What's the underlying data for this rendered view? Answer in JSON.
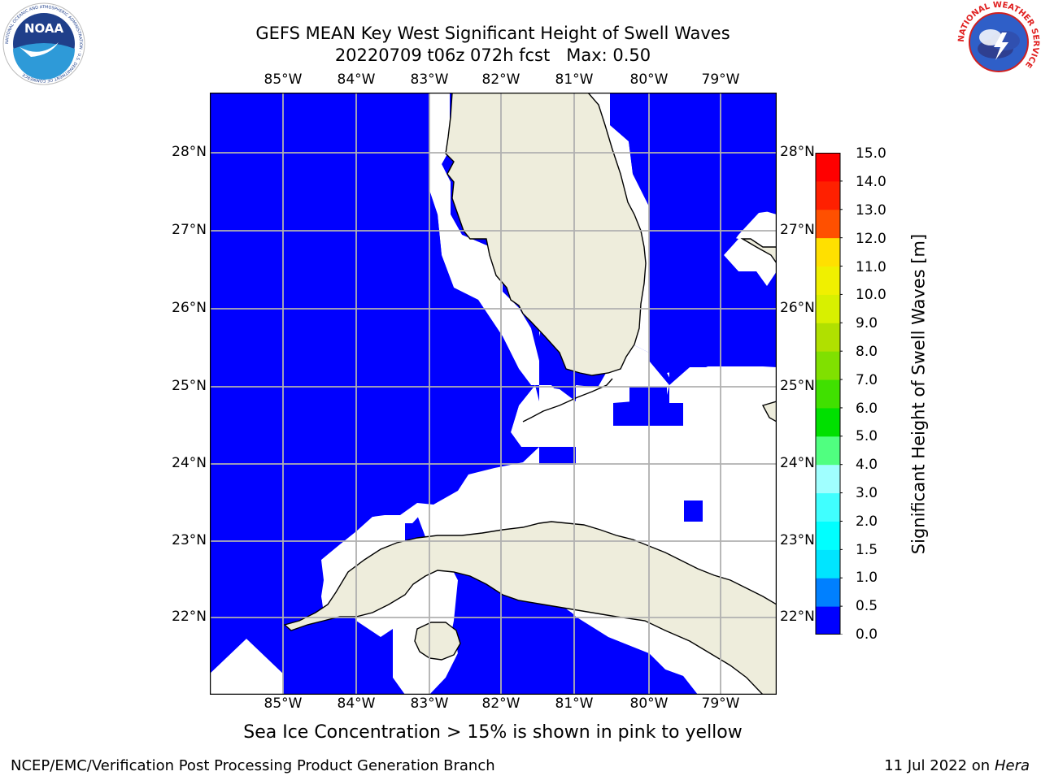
{
  "header": {
    "title_line1": "GEFS MEAN Key West Significant Height of Swell Waves",
    "title_line2": "20220709 t06z 072h fcst   Max: 0.50"
  },
  "logos": {
    "noaa_text": "NOAA",
    "noaa_ring_text": "NATIONAL OCEANIC AND ATMOSPHERIC ADMINISTRATION · U.S. DEPARTMENT OF COMMERCE",
    "nws_ring_text": "NATIONAL WEATHER SERVICE"
  },
  "map": {
    "lon_labels": [
      "85°W",
      "84°W",
      "83°W",
      "82°W",
      "81°W",
      "80°W",
      "79°W"
    ],
    "lat_labels": [
      "28°N",
      "27°N",
      "26°N",
      "25°N",
      "24°N",
      "23°N",
      "22°N"
    ],
    "lon_range": [
      -86.0,
      -78.3
    ],
    "lat_range": [
      21.0,
      28.8
    ],
    "colors": {
      "ocean_low": "#0000ff",
      "land": "#eeeddc",
      "missing": "#ffffff",
      "grid": "#b0b0b0"
    }
  },
  "colorbar": {
    "label": "Significant Height of Swell Waves [m]",
    "ticks": [
      "15.0",
      "14.0",
      "13.0",
      "12.0",
      "11.0",
      "10.0",
      "9.0",
      "8.0",
      "7.0",
      "6.0",
      "5.0",
      "4.0",
      "3.0",
      "2.0",
      "1.5",
      "1.0",
      "0.5",
      "0.0"
    ],
    "colors": [
      "#0000ff",
      "#0080ff",
      "#00e5ff",
      "#00ffff",
      "#40ffff",
      "#a0ffff",
      "#50ff80",
      "#00e000",
      "#40e000",
      "#80e000",
      "#b0e000",
      "#d8f000",
      "#f0f000",
      "#ffe000",
      "#ffc000",
      "#ffa000",
      "#ff8000",
      "#ff5000",
      "#ff2000",
      "#ff0000"
    ]
  },
  "note": "Sea Ice Concentration > 15% is shown in pink to yellow",
  "footer": {
    "left": "NCEP/EMC/Verification Post Processing Product Generation Branch",
    "right_prefix": "11 Jul 2022 on ",
    "right_host": "Hera"
  }
}
